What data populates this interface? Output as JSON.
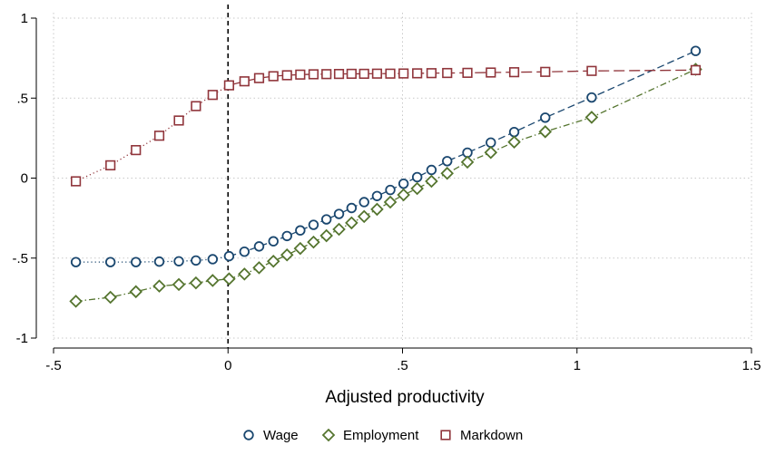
{
  "chart_data": {
    "type": "line",
    "title": "",
    "xlabel": "Adjusted productivity",
    "ylabel": "",
    "xlim": [
      -0.5,
      1.5
    ],
    "ylim": [
      -1,
      1
    ],
    "xticks": [
      -0.5,
      0,
      0.5,
      1,
      1.5
    ],
    "xtick_labels": [
      "-.5",
      "0",
      ".5",
      "1",
      "1.5"
    ],
    "yticks": [
      -1,
      -0.5,
      0,
      0.5,
      1
    ],
    "ytick_labels": [
      "-1",
      "-.5",
      "0",
      ".5",
      "1"
    ],
    "grid": true,
    "reference_line": {
      "x": 0,
      "style": "dashed"
    },
    "legend_position": "bottom",
    "series": [
      {
        "name": "Wage",
        "marker": "circle",
        "color": "#1a476f",
        "line_before_zero": "dotted",
        "line_after_zero": "dashed",
        "points": [
          [
            -0.436,
            -0.525
          ],
          [
            -0.337,
            -0.525
          ],
          [
            -0.264,
            -0.525
          ],
          [
            -0.197,
            -0.522
          ],
          [
            -0.141,
            -0.52
          ],
          [
            -0.092,
            -0.515
          ],
          [
            -0.044,
            -0.507
          ],
          [
            0.003,
            -0.488
          ],
          [
            0.047,
            -0.46
          ],
          [
            0.089,
            -0.427
          ],
          [
            0.13,
            -0.395
          ],
          [
            0.169,
            -0.362
          ],
          [
            0.207,
            -0.327
          ],
          [
            0.245,
            -0.292
          ],
          [
            0.282,
            -0.258
          ],
          [
            0.318,
            -0.224
          ],
          [
            0.354,
            -0.187
          ],
          [
            0.39,
            -0.15
          ],
          [
            0.427,
            -0.112
          ],
          [
            0.465,
            -0.074
          ],
          [
            0.503,
            -0.035
          ],
          [
            0.542,
            0.006
          ],
          [
            0.583,
            0.051
          ],
          [
            0.628,
            0.106
          ],
          [
            0.686,
            0.159
          ],
          [
            0.753,
            0.222
          ],
          [
            0.82,
            0.288
          ],
          [
            0.909,
            0.378
          ],
          [
            1.042,
            0.504
          ],
          [
            1.34,
            0.795
          ]
        ]
      },
      {
        "name": "Employment",
        "marker": "diamond",
        "color": "#55752f",
        "line_before_zero": "dash-dot",
        "line_after_zero": "dash-dot",
        "points": [
          [
            -0.436,
            -0.77
          ],
          [
            -0.337,
            -0.745
          ],
          [
            -0.264,
            -0.71
          ],
          [
            -0.197,
            -0.675
          ],
          [
            -0.141,
            -0.665
          ],
          [
            -0.092,
            -0.655
          ],
          [
            -0.044,
            -0.64
          ],
          [
            0.003,
            -0.63
          ],
          [
            0.047,
            -0.6
          ],
          [
            0.089,
            -0.56
          ],
          [
            0.13,
            -0.52
          ],
          [
            0.169,
            -0.48
          ],
          [
            0.207,
            -0.44
          ],
          [
            0.245,
            -0.4
          ],
          [
            0.282,
            -0.36
          ],
          [
            0.318,
            -0.32
          ],
          [
            0.354,
            -0.28
          ],
          [
            0.39,
            -0.24
          ],
          [
            0.427,
            -0.195
          ],
          [
            0.465,
            -0.15
          ],
          [
            0.503,
            -0.105
          ],
          [
            0.542,
            -0.065
          ],
          [
            0.583,
            -0.02
          ],
          [
            0.628,
            0.03
          ],
          [
            0.686,
            0.1
          ],
          [
            0.753,
            0.16
          ],
          [
            0.82,
            0.225
          ],
          [
            0.909,
            0.29
          ],
          [
            1.042,
            0.38
          ],
          [
            1.34,
            0.68
          ]
        ]
      },
      {
        "name": "Markdown",
        "marker": "square",
        "color": "#90353b",
        "line_before_zero": "dotted",
        "line_after_zero": "long-dash",
        "points": [
          [
            -0.436,
            -0.02
          ],
          [
            -0.337,
            0.08
          ],
          [
            -0.264,
            0.175
          ],
          [
            -0.197,
            0.265
          ],
          [
            -0.141,
            0.36
          ],
          [
            -0.092,
            0.45
          ],
          [
            -0.044,
            0.52
          ],
          [
            0.003,
            0.58
          ],
          [
            0.047,
            0.605
          ],
          [
            0.089,
            0.625
          ],
          [
            0.13,
            0.637
          ],
          [
            0.169,
            0.643
          ],
          [
            0.207,
            0.647
          ],
          [
            0.245,
            0.649
          ],
          [
            0.282,
            0.65
          ],
          [
            0.318,
            0.651
          ],
          [
            0.354,
            0.652
          ],
          [
            0.39,
            0.652
          ],
          [
            0.427,
            0.653
          ],
          [
            0.465,
            0.653
          ],
          [
            0.503,
            0.654
          ],
          [
            0.542,
            0.655
          ],
          [
            0.583,
            0.656
          ],
          [
            0.628,
            0.657
          ],
          [
            0.686,
            0.658
          ],
          [
            0.753,
            0.66
          ],
          [
            0.82,
            0.662
          ],
          [
            0.909,
            0.664
          ],
          [
            1.042,
            0.67
          ],
          [
            1.34,
            0.675
          ]
        ]
      }
    ]
  }
}
